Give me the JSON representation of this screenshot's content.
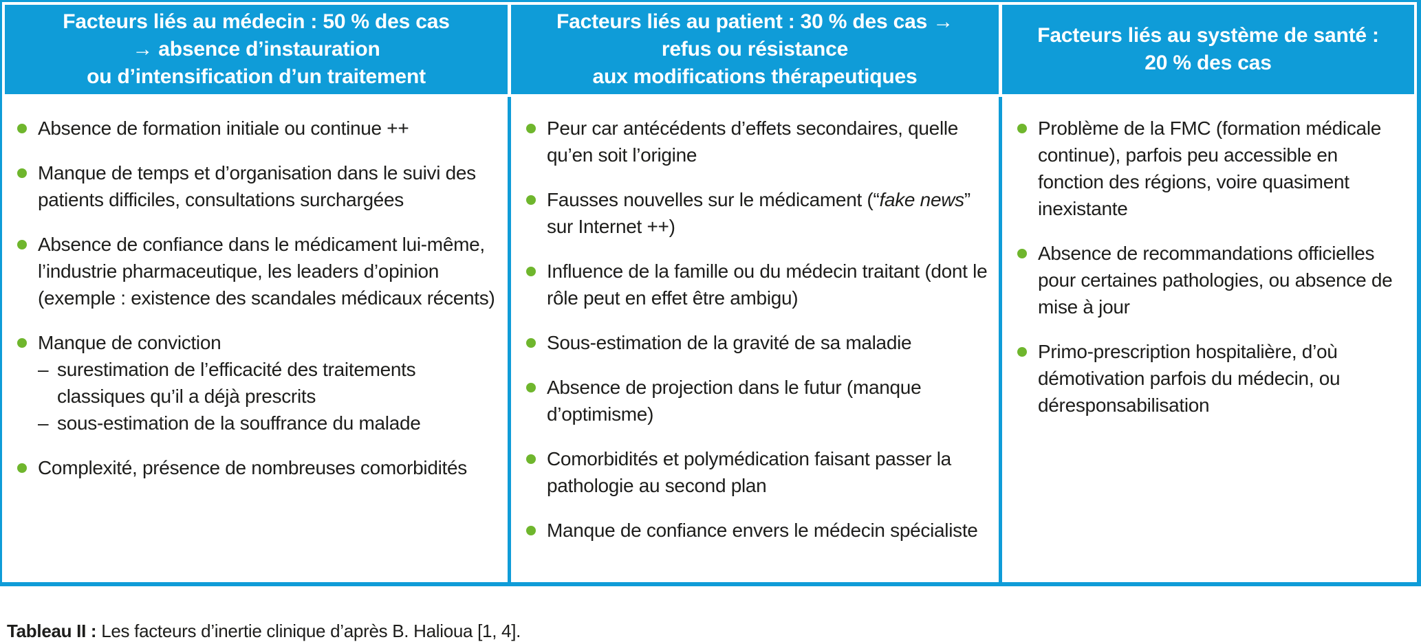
{
  "colors": {
    "accent_blue": "#0f9cd8",
    "bullet_green": "#6fb62d",
    "text": "#1d1d1b",
    "header_text": "#ffffff"
  },
  "table": {
    "sub_dash": "–",
    "columns": [
      {
        "header_lines": [
          "Facteurs liés au médecin : 50 % des cas",
          "→ absence d’instauration",
          "ou d’intensification d’un traitement"
        ],
        "items": [
          {
            "text": "Absence de formation initiale ou continue ++"
          },
          {
            "text": "Manque de temps et d’organisation dans le suivi des patients difficiles, consultations surchargées"
          },
          {
            "text": "Absence de confiance dans le médicament lui-même, l’industrie pharmaceutique, les leaders d’opinion (exemple : existence des scandales médicaux récents)"
          },
          {
            "text": "Manque de conviction",
            "sub": [
              "surestimation de l’efficacité des traitements classiques qu’il a déjà prescrits",
              "sous-estimation de la souffrance du malade"
            ]
          },
          {
            "text": "Complexité, présence de nombreuses comorbidités"
          }
        ]
      },
      {
        "header_lines": [
          "Facteurs liés au patient : 30 % des cas →",
          "refus ou résistance",
          "aux modifications thérapeutiques"
        ],
        "items": [
          {
            "text": "Peur car antécédents d’effets secondaires, quelle qu’en soit l’origine"
          },
          {
            "segments": [
              {
                "t": "Fausses nouvelles sur le médicament (“",
                "i": false
              },
              {
                "t": "fake news",
                "i": true
              },
              {
                "t": "” sur Internet ++)",
                "i": false
              }
            ]
          },
          {
            "text": "Influence de la famille ou du médecin traitant (dont le rôle peut en effet être ambigu)"
          },
          {
            "text": "Sous-estimation de la gravité de sa maladie"
          },
          {
            "text": "Absence de projection dans le futur (manque d’optimisme)"
          },
          {
            "text": "Comorbidités et polymédication faisant passer la pathologie au second plan"
          },
          {
            "text": "Manque de confiance envers le médecin spécialiste"
          }
        ]
      },
      {
        "header_lines": [
          "Facteurs liés au système de santé :",
          "20 % des cas"
        ],
        "items": [
          {
            "text": "Problème de la FMC (formation médicale continue), parfois peu accessible en fonction des régions, voire quasiment inexistante"
          },
          {
            "text": "Absence de recommandations officielles pour certaines pathologies, ou absence de mise à jour"
          },
          {
            "text": "Primo-prescription hospitalière, d’où démotivation parfois du médecin, ou déresponsabilisation"
          }
        ]
      }
    ]
  },
  "caption": {
    "label": "Tableau II :",
    "text": " Les facteurs d’inertie clinique d’après B. Halioua [1, 4]."
  }
}
